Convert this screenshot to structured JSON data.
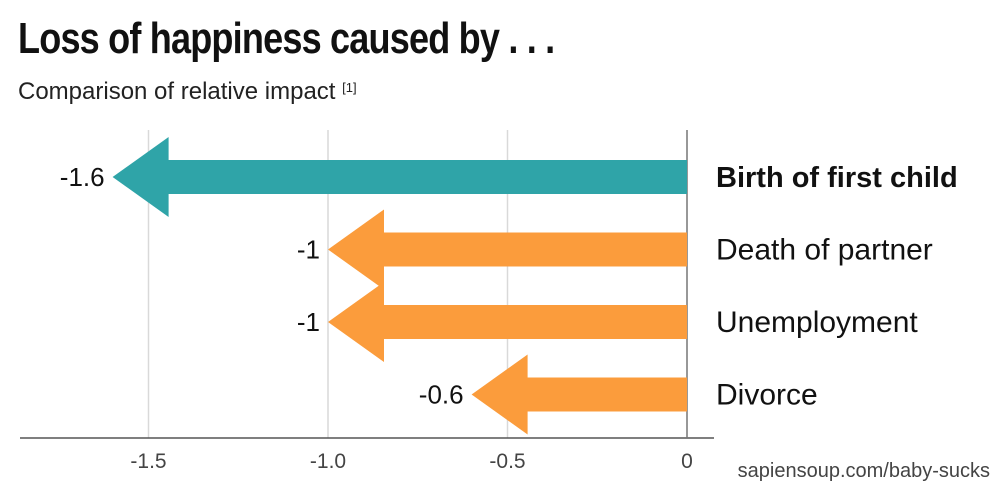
{
  "title": "Loss of happiness caused by . . .",
  "subtitle": {
    "text": "Comparison of relative impact",
    "footnote": "[1]"
  },
  "credit": "sapiensoup.com/baby-sucks",
  "chart_data": {
    "type": "bar",
    "orientation": "horizontal",
    "categories": [
      "Birth of first child",
      "Death of partner",
      "Unemployment",
      "Divorce"
    ],
    "values": [
      -1.6,
      -1,
      -1,
      -0.6
    ],
    "value_labels": [
      "-1.6",
      "-1",
      "-1",
      "-0.6"
    ],
    "highlight": [
      true,
      false,
      false,
      false
    ],
    "colors": {
      "highlight": "#2fa4a8",
      "normal": "#fb9c3c"
    },
    "xlim": [
      -1.85,
      0.08
    ],
    "xticks": [
      -1.5,
      -1.0,
      -0.5,
      0
    ],
    "xtick_labels": [
      "-1.5",
      "-1.0",
      "-0.5",
      "0"
    ],
    "grid": true,
    "bar_shape": "arrow"
  }
}
